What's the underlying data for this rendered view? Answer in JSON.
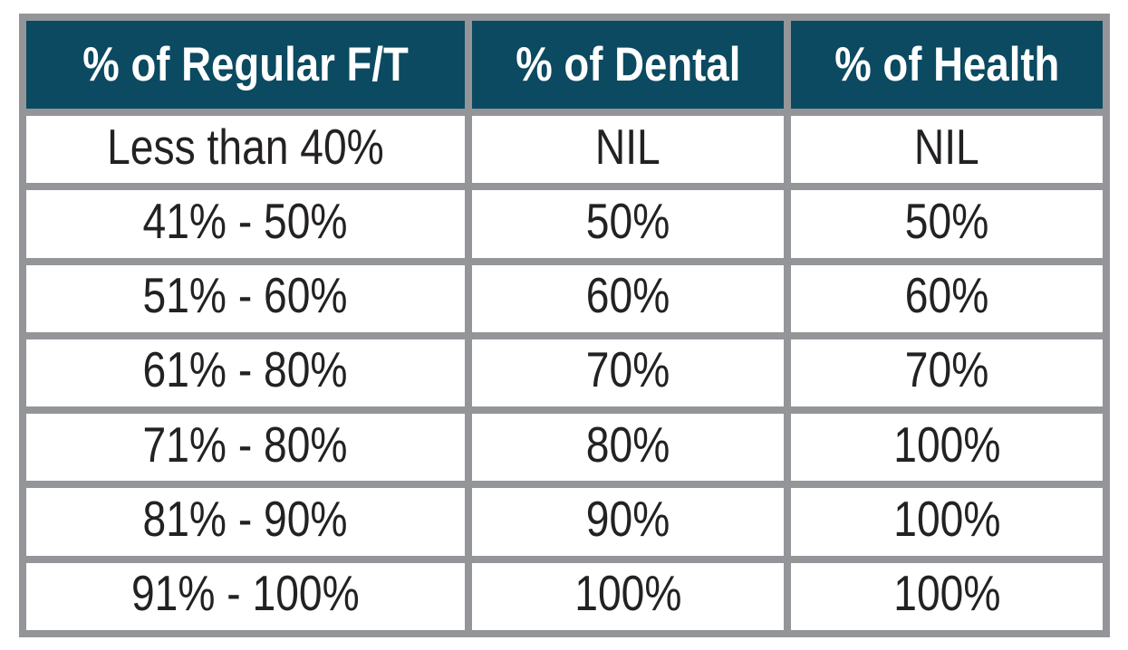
{
  "page": {
    "background": "#ffffff"
  },
  "table": {
    "header_bg": "#0b4a61",
    "header_text_color": "#ffffff",
    "grid_line_color": "#939598",
    "body_text_color": "#242122",
    "columns": [
      "% of Regular F/T",
      "% of Dental",
      "% of Health"
    ],
    "rows": [
      [
        "Less than 40%",
        "NIL",
        "NIL"
      ],
      [
        "41% - 50%",
        "50%",
        "50%"
      ],
      [
        "51% - 60%",
        "60%",
        "60%"
      ],
      [
        "61% - 80%",
        "70%",
        "70%"
      ],
      [
        "71% - 80%",
        "80%",
        "100%"
      ],
      [
        "81% - 90%",
        "90%",
        "100%"
      ],
      [
        "91% - 100%",
        "100%",
        "100%"
      ]
    ]
  },
  "chart_data": {
    "type": "table",
    "columns": [
      "% of Regular F/T",
      "% of Dental",
      "% of Health"
    ],
    "rows": [
      [
        "Less than 40%",
        "NIL",
        "NIL"
      ],
      [
        "41% - 50%",
        "50%",
        "50%"
      ],
      [
        "51% - 60%",
        "60%",
        "60%"
      ],
      [
        "61% - 80%",
        "70%",
        "70%"
      ],
      [
        "71% - 80%",
        "80%",
        "100%"
      ],
      [
        "81% - 90%",
        "90%",
        "100%"
      ],
      [
        "91% - 100%",
        "100%",
        "100%"
      ]
    ]
  }
}
